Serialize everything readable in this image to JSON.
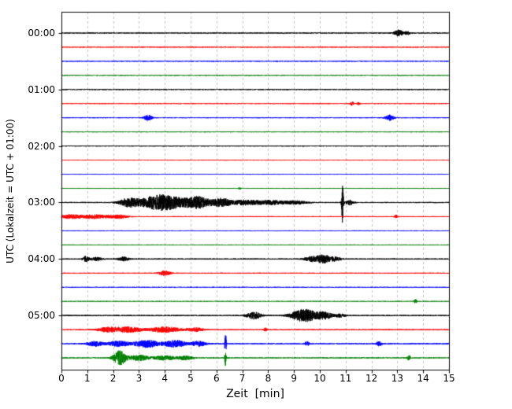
{
  "chart_data": {
    "type": "line",
    "subtype": "helicorder-seismogram",
    "title": "",
    "xlabel": "Zeit  [min]",
    "ylabel": "UTC (Lokalzeit = UTC + 01:00)",
    "xlim": [
      0,
      15
    ],
    "x_ticks": [
      0,
      1,
      2,
      3,
      4,
      5,
      6,
      7,
      8,
      9,
      10,
      11,
      12,
      13,
      14,
      15
    ],
    "minutes_per_line": 15,
    "grid": "vertical-dashed",
    "grid_color": "#b0b0b0",
    "frame_color": "#000000",
    "trace_colors_cycle": [
      "#000000",
      "#ff0000",
      "#0000ff",
      "#008000"
    ],
    "hour_labels": [
      "00:00",
      "01:00",
      "02:00",
      "03:00",
      "04:00",
      "05:00"
    ],
    "traces": [
      {
        "time": "00:00",
        "color": "#000000",
        "noise": 0.6,
        "events": [
          {
            "x": 13.05,
            "w": 0.18,
            "a": 4
          },
          {
            "x": 13.4,
            "w": 0.1,
            "a": 2
          }
        ]
      },
      {
        "time": "00:15",
        "color": "#ff0000",
        "noise": 0.5,
        "events": []
      },
      {
        "time": "00:30",
        "color": "#0000ff",
        "noise": 0.5,
        "events": []
      },
      {
        "time": "00:45",
        "color": "#008000",
        "noise": 0.5,
        "events": []
      },
      {
        "time": "01:00",
        "color": "#000000",
        "noise": 0.6,
        "events": []
      },
      {
        "time": "01:15",
        "color": "#ff0000",
        "noise": 0.5,
        "events": [
          {
            "x": 11.25,
            "w": 0.06,
            "a": 2.5
          },
          {
            "x": 11.5,
            "w": 0.05,
            "a": 1.8
          }
        ]
      },
      {
        "time": "01:30",
        "color": "#0000ff",
        "noise": 0.5,
        "events": [
          {
            "x": 3.35,
            "w": 0.16,
            "a": 3.5
          },
          {
            "x": 12.7,
            "w": 0.16,
            "a": 3.5
          }
        ]
      },
      {
        "time": "01:45",
        "color": "#008000",
        "noise": 0.5,
        "events": []
      },
      {
        "time": "02:00",
        "color": "#000000",
        "noise": 0.6,
        "events": []
      },
      {
        "time": "02:15",
        "color": "#ff0000",
        "noise": 0.5,
        "events": []
      },
      {
        "time": "02:30",
        "color": "#0000ff",
        "noise": 0.5,
        "events": []
      },
      {
        "time": "02:45",
        "color": "#008000",
        "noise": 0.5,
        "events": [
          {
            "x": 6.9,
            "w": 0.04,
            "a": 1.5
          }
        ]
      },
      {
        "time": "03:00",
        "color": "#000000",
        "noise": 0.7,
        "events": [
          {
            "x": 2.6,
            "w": 0.35,
            "a": 5
          },
          {
            "x": 3.9,
            "w": 0.85,
            "a": 10
          },
          {
            "x": 5.3,
            "w": 0.5,
            "a": 7
          },
          {
            "x": 6.2,
            "w": 0.35,
            "a": 5
          },
          {
            "x": 7.1,
            "w": 0.5,
            "a": 3
          },
          {
            "x": 8.1,
            "w": 0.6,
            "a": 2.5
          },
          {
            "x": 9.1,
            "w": 0.4,
            "a": 2
          },
          {
            "x": 10.88,
            "w": 0.035,
            "a": 26
          },
          {
            "x": 11.15,
            "w": 0.15,
            "a": 3
          }
        ]
      },
      {
        "time": "03:15",
        "color": "#ff0000",
        "noise": 0.6,
        "events": [
          {
            "x": 0.35,
            "w": 0.4,
            "a": 2.2
          },
          {
            "x": 1.3,
            "w": 0.6,
            "a": 2.4
          },
          {
            "x": 2.25,
            "w": 0.3,
            "a": 2
          },
          {
            "x": 12.95,
            "w": 0.06,
            "a": 2
          }
        ]
      },
      {
        "time": "03:30",
        "color": "#0000ff",
        "noise": 0.5,
        "events": []
      },
      {
        "time": "03:45",
        "color": "#008000",
        "noise": 0.5,
        "events": []
      },
      {
        "time": "04:00",
        "color": "#000000",
        "noise": 0.7,
        "events": [
          {
            "x": 0.95,
            "w": 0.12,
            "a": 3.5
          },
          {
            "x": 1.35,
            "w": 0.2,
            "a": 2
          },
          {
            "x": 2.4,
            "w": 0.2,
            "a": 2.5
          },
          {
            "x": 9.7,
            "w": 0.3,
            "a": 3
          },
          {
            "x": 10.15,
            "w": 0.25,
            "a": 5
          },
          {
            "x": 10.6,
            "w": 0.2,
            "a": 2.5
          }
        ]
      },
      {
        "time": "04:15",
        "color": "#ff0000",
        "noise": 0.5,
        "events": [
          {
            "x": 4.0,
            "w": 0.22,
            "a": 3
          }
        ]
      },
      {
        "time": "04:30",
        "color": "#0000ff",
        "noise": 0.5,
        "events": []
      },
      {
        "time": "04:45",
        "color": "#008000",
        "noise": 0.5,
        "events": [
          {
            "x": 13.7,
            "w": 0.05,
            "a": 2.5
          }
        ]
      },
      {
        "time": "05:00",
        "color": "#000000",
        "noise": 0.7,
        "events": [
          {
            "x": 7.45,
            "w": 0.28,
            "a": 4.5
          },
          {
            "x": 9.4,
            "w": 0.5,
            "a": 8
          },
          {
            "x": 10.2,
            "w": 0.3,
            "a": 4
          },
          {
            "x": 10.8,
            "w": 0.2,
            "a": 2
          }
        ]
      },
      {
        "time": "05:15",
        "color": "#ff0000",
        "noise": 0.6,
        "events": [
          {
            "x": 1.8,
            "w": 0.4,
            "a": 3
          },
          {
            "x": 2.6,
            "w": 0.5,
            "a": 3.5
          },
          {
            "x": 4.0,
            "w": 0.6,
            "a": 3.5
          },
          {
            "x": 5.2,
            "w": 0.3,
            "a": 2.5
          },
          {
            "x": 7.9,
            "w": 0.06,
            "a": 2
          }
        ]
      },
      {
        "time": "05:30",
        "color": "#0000ff",
        "noise": 0.7,
        "events": [
          {
            "x": 1.3,
            "w": 0.3,
            "a": 3
          },
          {
            "x": 2.2,
            "w": 0.4,
            "a": 3.5
          },
          {
            "x": 3.3,
            "w": 0.5,
            "a": 4.5
          },
          {
            "x": 4.4,
            "w": 0.4,
            "a": 4.5
          },
          {
            "x": 5.3,
            "w": 0.3,
            "a": 3
          },
          {
            "x": 6.35,
            "w": 0.03,
            "a": 14
          },
          {
            "x": 9.5,
            "w": 0.08,
            "a": 3
          },
          {
            "x": 12.3,
            "w": 0.1,
            "a": 3
          }
        ]
      },
      {
        "time": "05:45",
        "color": "#008000",
        "noise": 0.6,
        "events": [
          {
            "x": 2.25,
            "w": 0.24,
            "a": 9
          },
          {
            "x": 3.0,
            "w": 0.4,
            "a": 3.5
          },
          {
            "x": 4.0,
            "w": 0.4,
            "a": 3
          },
          {
            "x": 4.8,
            "w": 0.3,
            "a": 2.5
          },
          {
            "x": 6.35,
            "w": 0.03,
            "a": 11
          },
          {
            "x": 13.45,
            "w": 0.06,
            "a": 3.5
          }
        ]
      }
    ]
  }
}
